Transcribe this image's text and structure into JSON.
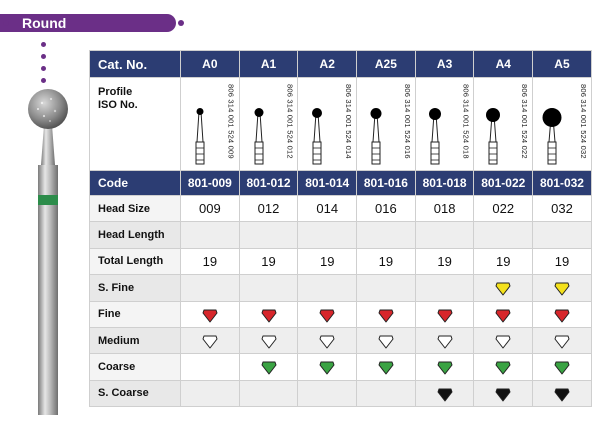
{
  "title": "Round",
  "table": {
    "header_label": "Cat. No.",
    "columns": [
      "A0",
      "A1",
      "A2",
      "A25",
      "A3",
      "A4",
      "A5"
    ],
    "profile_label_1": "Profile",
    "profile_label_2": "ISO No.",
    "iso_numbers": [
      "806 314 001 524 009",
      "806 314 001 524 012",
      "806 314 001 524 014",
      "806 314 001 524 016",
      "806 314 001 524 018",
      "806 314 001 524 022",
      "806 314 001 524 032"
    ],
    "code_label": "Code",
    "codes": [
      "801-009",
      "801-012",
      "801-014",
      "801-016",
      "801-018",
      "801-022",
      "801-032"
    ],
    "rows": [
      {
        "label": "Head Size",
        "values": [
          "009",
          "012",
          "014",
          "016",
          "018",
          "022",
          "032"
        ]
      },
      {
        "label": "Head Length",
        "values": [
          "",
          "",
          "",
          "",
          "",
          "",
          ""
        ]
      },
      {
        "label": "Total Length",
        "values": [
          "19",
          "19",
          "19",
          "19",
          "19",
          "19",
          "19"
        ]
      }
    ],
    "grit_rows": [
      {
        "label": "S. Fine",
        "grit": "sfine",
        "avail": [
          false,
          false,
          false,
          false,
          false,
          true,
          true
        ]
      },
      {
        "label": "Fine",
        "grit": "fine",
        "avail": [
          true,
          true,
          true,
          true,
          true,
          true,
          true
        ]
      },
      {
        "label": "Medium",
        "grit": "medium",
        "avail": [
          true,
          true,
          true,
          true,
          true,
          true,
          true
        ]
      },
      {
        "label": "Coarse",
        "grit": "coarse",
        "avail": [
          false,
          true,
          true,
          true,
          true,
          true,
          true
        ]
      },
      {
        "label": "S. Coarse",
        "grit": "scoarse",
        "avail": [
          false,
          false,
          false,
          false,
          true,
          true,
          true
        ]
      }
    ]
  },
  "grit_colors": {
    "sfine": "#f4e11c",
    "fine": "#d7262b",
    "medium": "#ffffff",
    "coarse": "#3aa343",
    "scoarse": "#111111"
  },
  "colors": {
    "brand_purple": "#6b2f87",
    "header_navy": "#2c3d73"
  }
}
